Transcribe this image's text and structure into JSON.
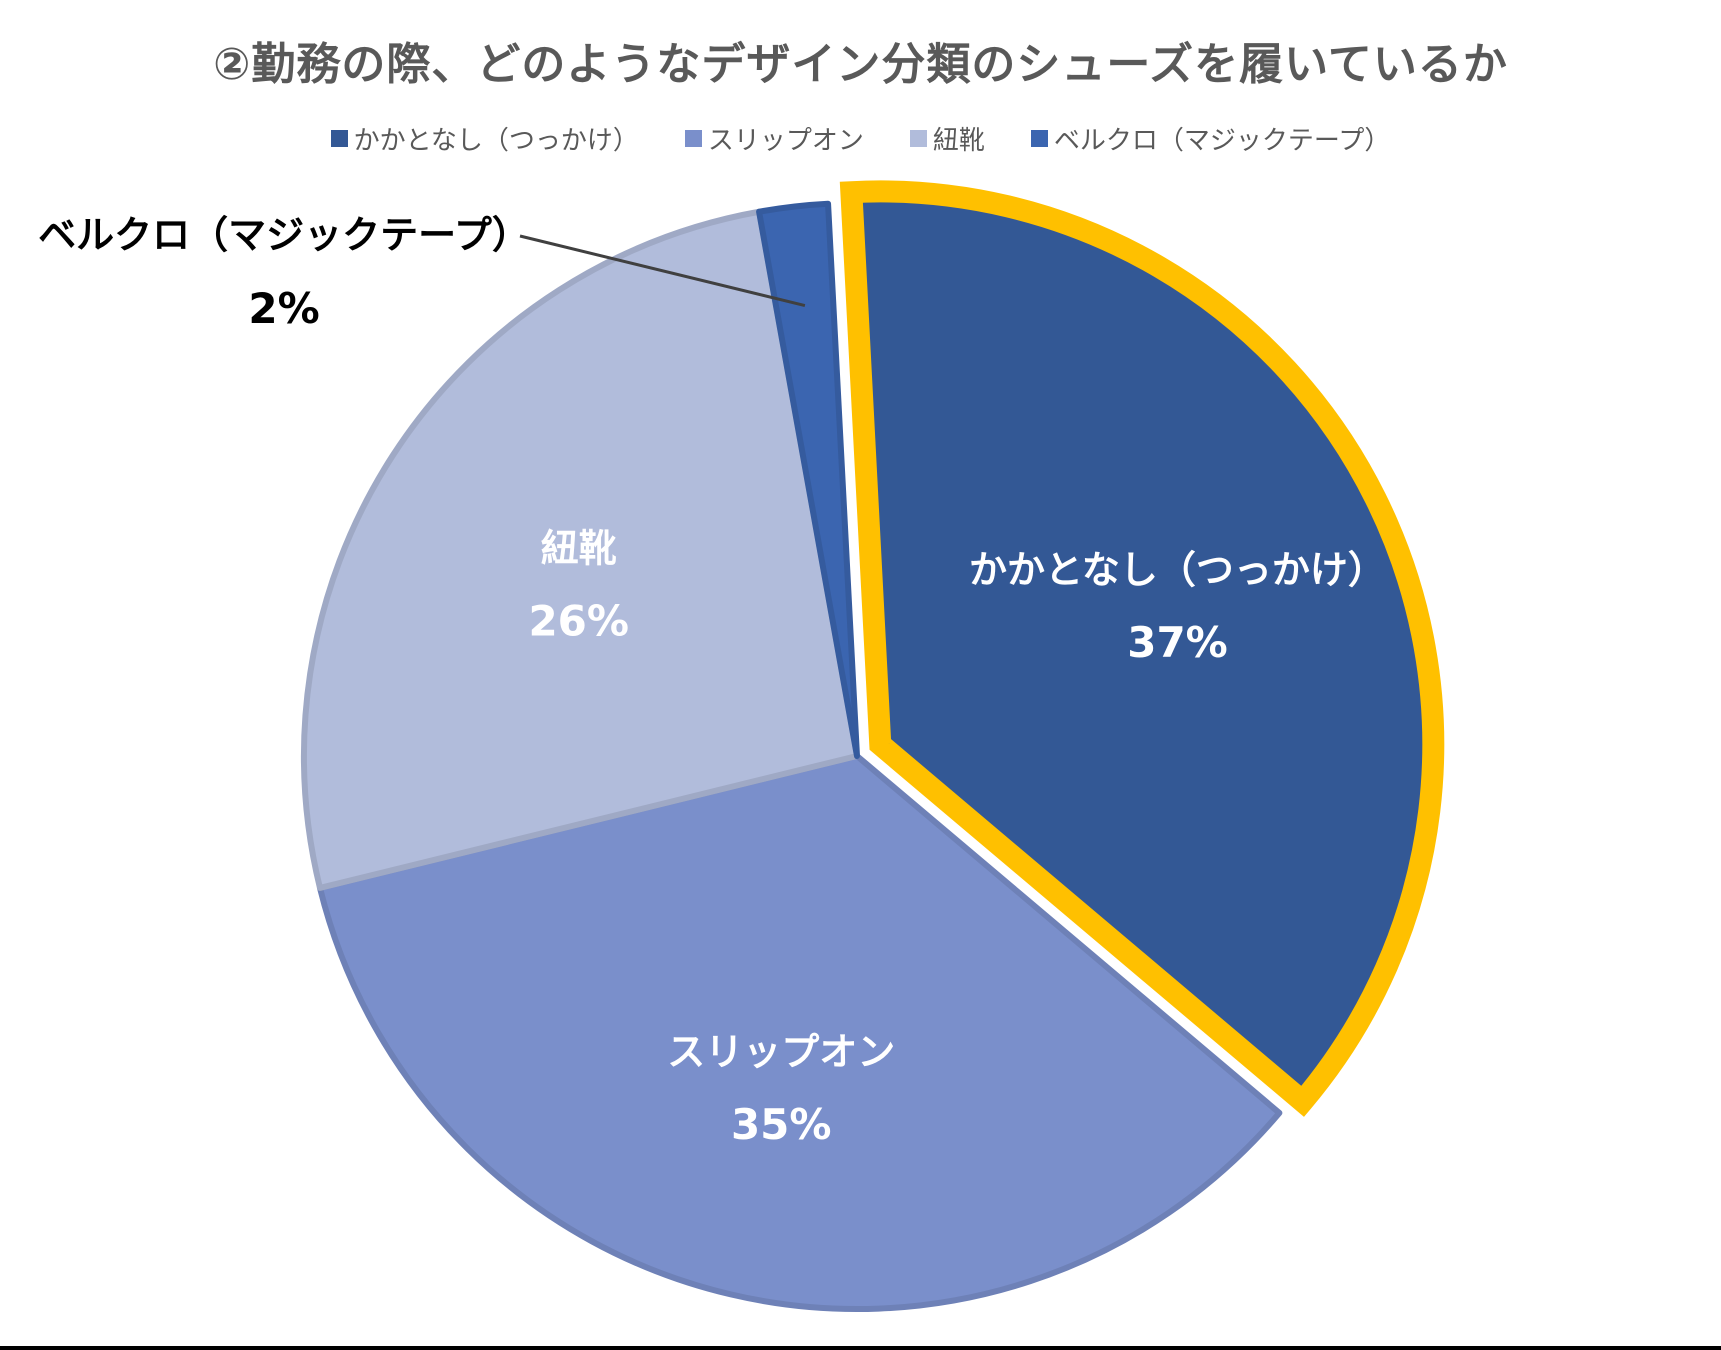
{
  "chart_data": {
    "type": "pie",
    "title": "②勤務の際、どのようなデザイン分類のシューズを履いているか",
    "legend_position": "top",
    "slices": [
      {
        "label": "かかとなし（つっかけ）",
        "value": 37,
        "value_label": "37%",
        "color": "#335895",
        "highlighted": true,
        "highlight_color": "#FFC000"
      },
      {
        "label": "スリップオン",
        "value": 35,
        "value_label": "35%",
        "color": "#7A8FCB"
      },
      {
        "label": "紐靴",
        "value": 26,
        "value_label": "26%",
        "color": "#B1BCDB"
      },
      {
        "label": "ベルクロ（マジックテープ）",
        "value": 2,
        "value_label": "2%",
        "color": "#3B65B0"
      }
    ]
  }
}
